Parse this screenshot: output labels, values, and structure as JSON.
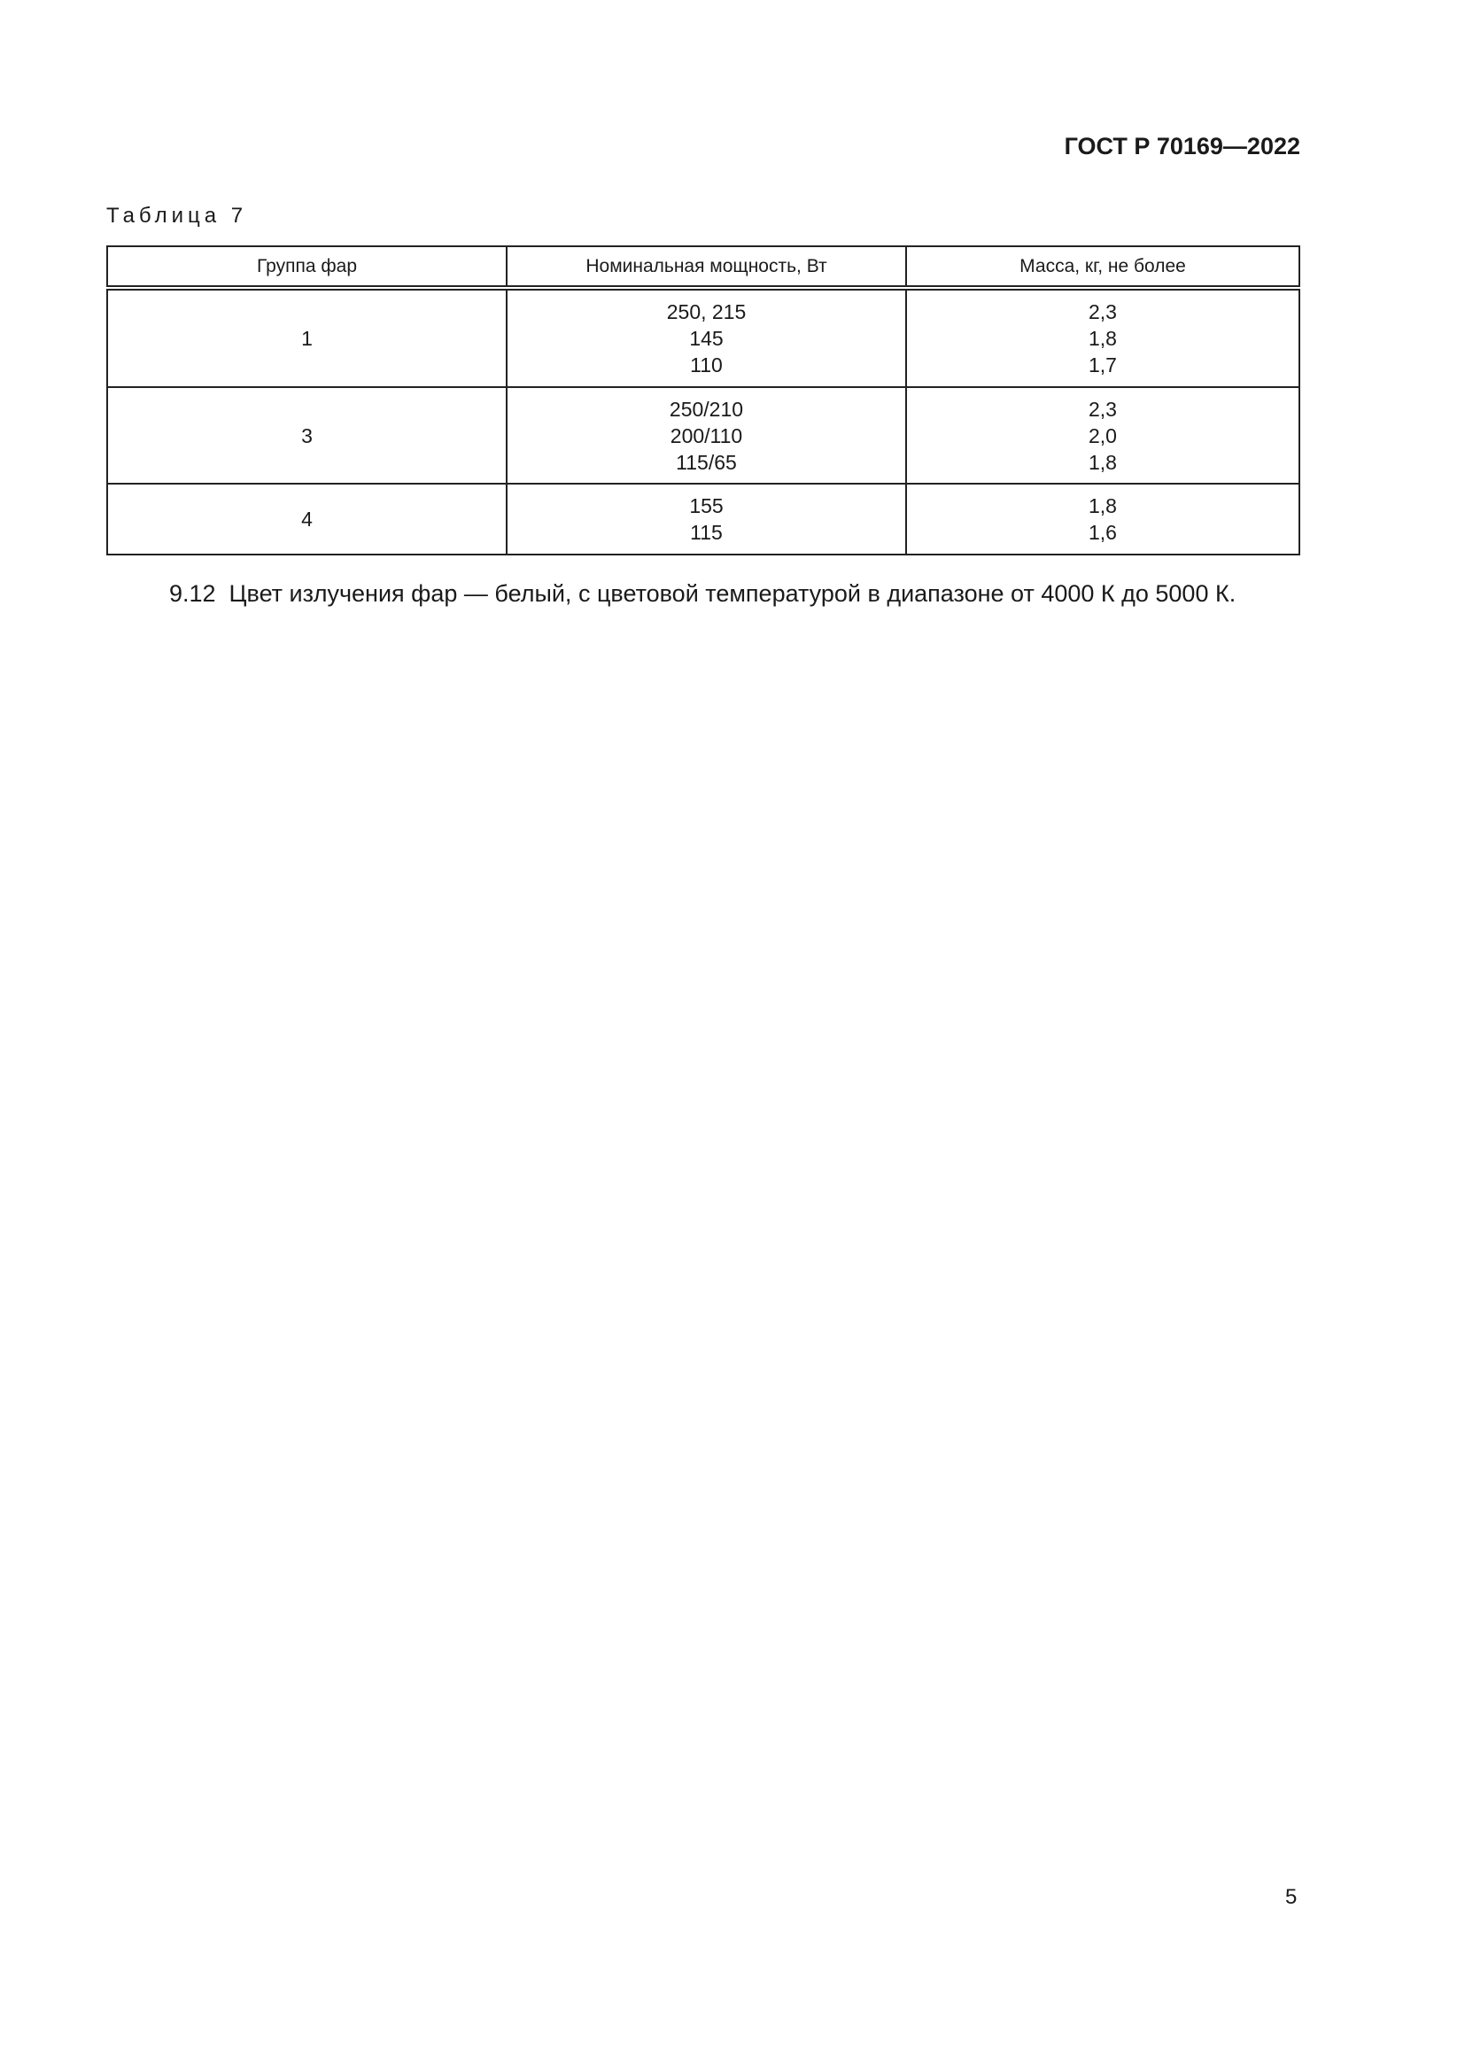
{
  "header": {
    "doc_code": "ГОСТ Р 70169—2022"
  },
  "table": {
    "caption": "Таблица 7",
    "columns": [
      "Группа фар",
      "Номинальная мощность, Вт",
      "Масса, кг, не более"
    ],
    "rows": [
      {
        "group": "1",
        "power": [
          "250, 215",
          "145",
          "110"
        ],
        "mass": [
          "2,3",
          "1,8",
          "1,7"
        ]
      },
      {
        "group": "3",
        "power": [
          "250/210",
          "200/110",
          "115/65"
        ],
        "mass": [
          "2,3",
          "2,0",
          "1,8"
        ]
      },
      {
        "group": "4",
        "power": [
          "155",
          "115"
        ],
        "mass": [
          "1,8",
          "1,6"
        ]
      }
    ]
  },
  "paragraph": "9.12  Цвет излучения фар — белый, с цветовой температурой в диапазоне от 4000 К до 5000 К.",
  "page_number": "5"
}
